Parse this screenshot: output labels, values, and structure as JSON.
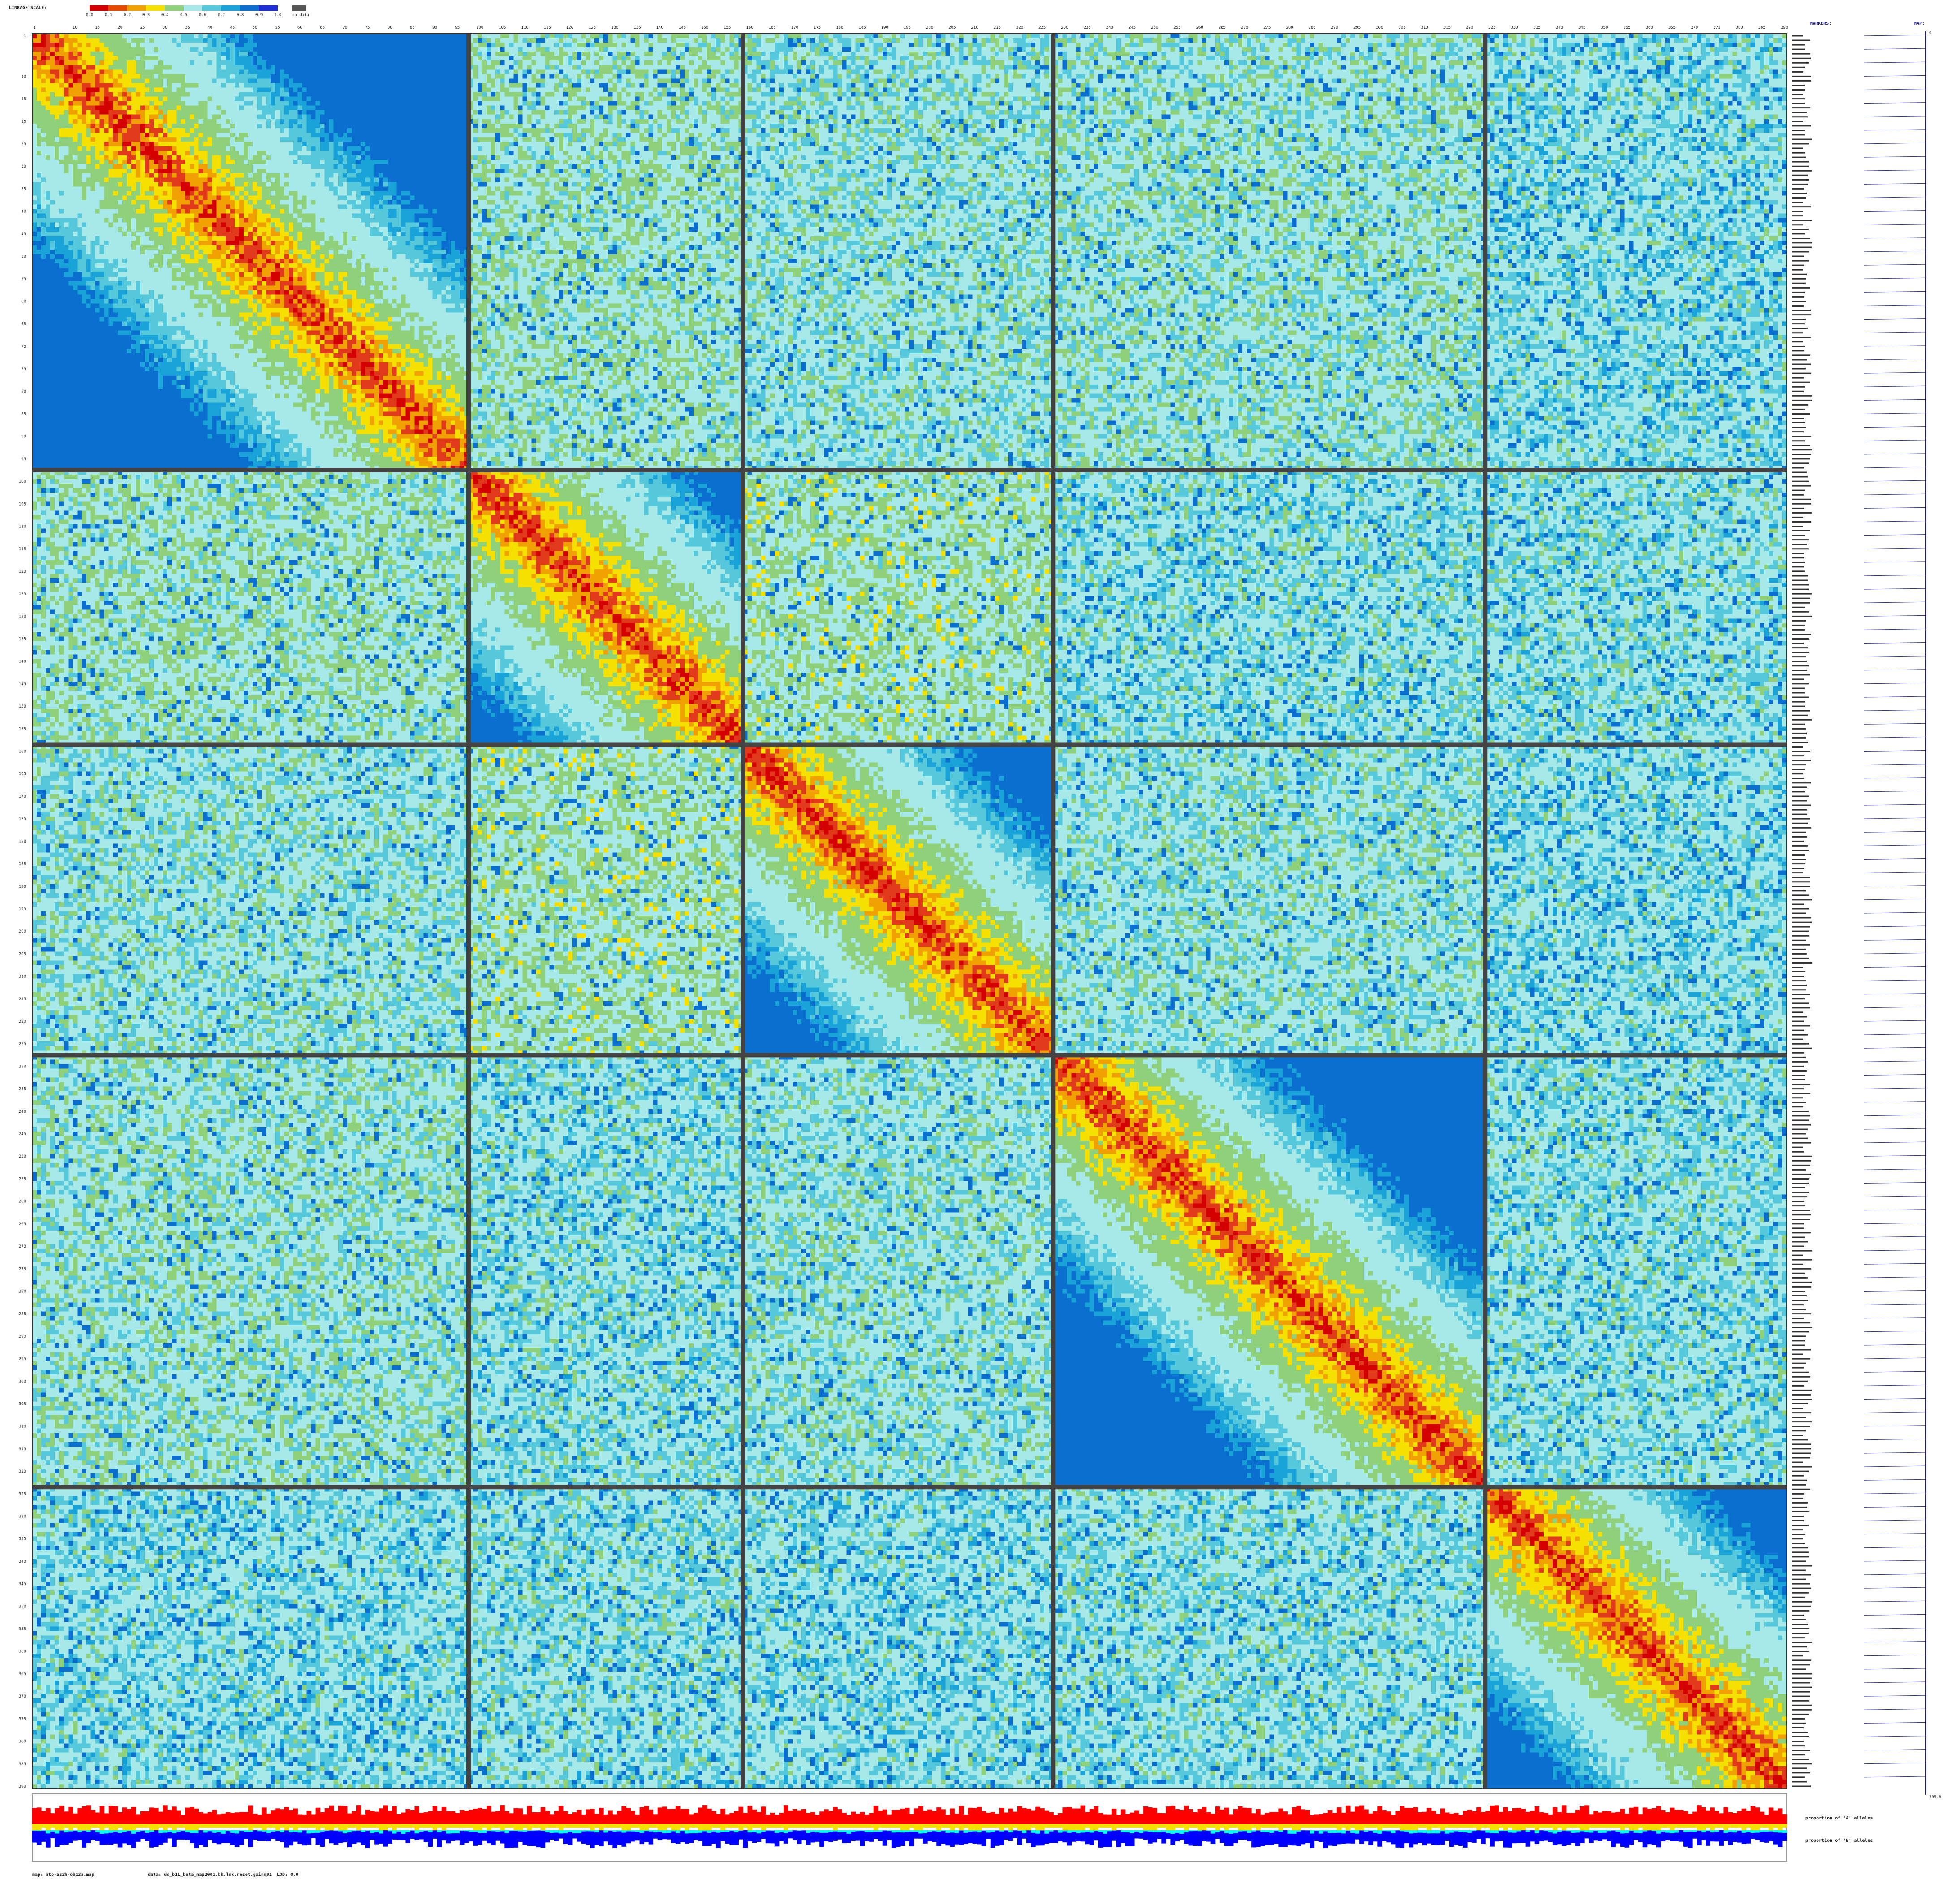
{
  "legend": {
    "title": "LINKAGE SCALE:",
    "ticks": [
      "0.0",
      "0.1",
      "0.2",
      "0.3",
      "0.4",
      "0.5",
      "0.6",
      "0.7",
      "0.8",
      "0.9",
      "1.0"
    ],
    "nodata_label": "no data",
    "colors": [
      "#d40000",
      "#e64a00",
      "#f0a000",
      "#f5e000",
      "#8fd17a",
      "#a7e8e8",
      "#55c8dc",
      "#1aa3d8",
      "#0b6fd0",
      "#1f2fd6"
    ]
  },
  "right_headers": {
    "markers": "MARKERS:",
    "map": "MAP:"
  },
  "map": {
    "start": "0",
    "end": "369.6"
  },
  "proportion_labels": {
    "a": "proportion of 'A' alleles",
    "b": "proportion of 'B' alleles"
  },
  "footer": {
    "map_file": "map: atb-a22h-ob12a.map",
    "data_file": "data: ds_b1L_beta_map2001.bk.loc.reset.gainq01",
    "lod": "LOD: 0.0"
  },
  "chart_data": {
    "type": "heatmap",
    "n_markers": 390,
    "x_tick_labels": [
      "1",
      "10",
      "15",
      "20",
      "25",
      "30",
      "35",
      "40",
      "45",
      "50",
      "55",
      "60",
      "65",
      "70",
      "75",
      "80",
      "85",
      "90",
      "95",
      "100",
      "105",
      "110",
      "115",
      "120",
      "125",
      "130",
      "135",
      "140",
      "145",
      "150",
      "155",
      "160",
      "165",
      "170",
      "175",
      "180",
      "185",
      "190",
      "195",
      "200",
      "205",
      "210",
      "215",
      "220",
      "225",
      "230",
      "235",
      "240",
      "245",
      "250",
      "255",
      "260",
      "265",
      "270",
      "275",
      "280",
      "285",
      "290",
      "295",
      "300",
      "305",
      "310",
      "315",
      "320",
      "325",
      "330",
      "335",
      "340",
      "345",
      "350",
      "355",
      "360",
      "365",
      "370",
      "375",
      "380",
      "385",
      "390"
    ],
    "linkage_groups": [
      {
        "start": 1,
        "end": 97
      },
      {
        "start": 98,
        "end": 158
      },
      {
        "start": 159,
        "end": 227
      },
      {
        "start": 228,
        "end": 323
      },
      {
        "start": 324,
        "end": 390
      }
    ],
    "value_range": [
      0,
      1
    ],
    "grid": true,
    "legend_position": "top-left"
  }
}
